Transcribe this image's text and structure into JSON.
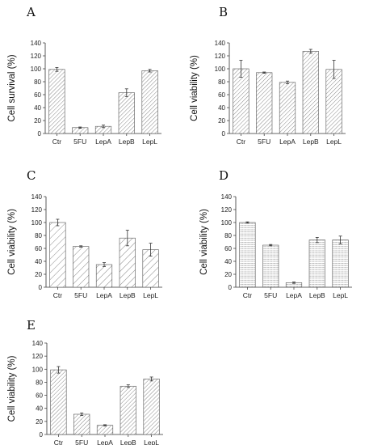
{
  "chart_data": [
    {
      "type": "bar",
      "panel": "A",
      "ylabel": "Cell survival (%)",
      "ylim": [
        0,
        140
      ],
      "yticks": [
        0,
        20,
        40,
        60,
        80,
        100,
        120,
        140
      ],
      "categories": [
        "Ctr",
        "5FU",
        "LepA",
        "LepB",
        "LepL"
      ],
      "values": [
        99,
        9,
        11,
        63,
        97
      ],
      "errors": [
        3,
        1,
        2,
        6,
        2
      ],
      "pattern": "diagonal"
    },
    {
      "type": "bar",
      "panel": "B",
      "ylabel": "Cell viability (%)",
      "ylim": [
        0,
        140
      ],
      "yticks": [
        0,
        20,
        40,
        60,
        80,
        100,
        120,
        140
      ],
      "categories": [
        "Ctr",
        "5FU",
        "LepA",
        "LepB",
        "LepL"
      ],
      "values": [
        100,
        94,
        79,
        127,
        99
      ],
      "errors": [
        13,
        1,
        2,
        3,
        14
      ],
      "pattern": "diagonal"
    },
    {
      "type": "bar",
      "panel": "C",
      "ylabel": "Cell viability (%)",
      "ylim": [
        0,
        140
      ],
      "yticks": [
        0,
        20,
        40,
        60,
        80,
        100,
        120,
        140
      ],
      "categories": [
        "Ctr",
        "5FU",
        "LepA",
        "LepB",
        "LepL"
      ],
      "values": [
        100,
        63,
        35,
        76,
        58
      ],
      "errors": [
        5,
        1,
        3,
        12,
        10
      ],
      "pattern": "wide-diagonal"
    },
    {
      "type": "bar",
      "panel": "D",
      "ylabel": "Cell viability (%)",
      "ylim": [
        0,
        140
      ],
      "yticks": [
        0,
        20,
        40,
        60,
        80,
        100,
        120,
        140
      ],
      "categories": [
        "Ctr",
        "5FU",
        "LepA",
        "LepB",
        "LepL"
      ],
      "values": [
        100,
        65,
        7,
        73,
        73
      ],
      "errors": [
        1,
        1,
        1,
        4,
        6
      ],
      "pattern": "horizontal"
    },
    {
      "type": "bar",
      "panel": "E",
      "ylabel": "Cell viability (%)",
      "ylim": [
        0,
        140
      ],
      "yticks": [
        0,
        20,
        40,
        60,
        80,
        100,
        120,
        140
      ],
      "categories": [
        "Ctr",
        "5FU",
        "LepA",
        "LepB",
        "LepL"
      ],
      "values": [
        99,
        31,
        14,
        74,
        85
      ],
      "errors": [
        5,
        2,
        1,
        2,
        3
      ],
      "pattern": "diagonal"
    }
  ]
}
